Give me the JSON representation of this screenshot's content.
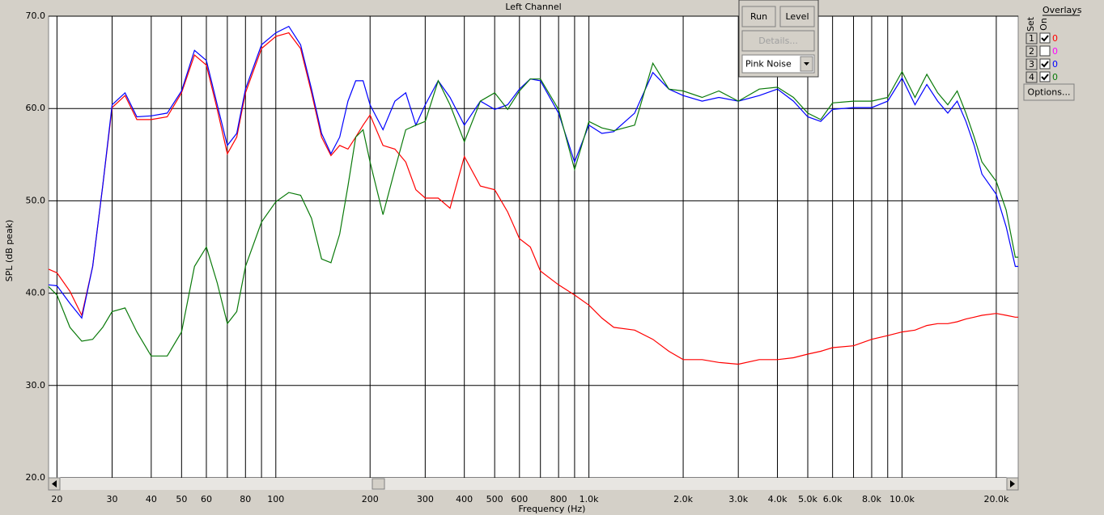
{
  "chart_data": {
    "type": "line",
    "title": "Left Channel",
    "xlabel": "Frequency (Hz)",
    "ylabel": "SPL (dB peak)",
    "log_x": true,
    "grid": true,
    "xlim": [
      18.8,
      23500
    ],
    "ylim": [
      20,
      70
    ],
    "xticks": [
      20,
      30,
      40,
      50,
      60,
      80,
      100,
      200,
      300,
      400,
      500,
      600,
      800,
      {
        "value": 1000,
        "label": "1.0k"
      },
      {
        "value": 2000,
        "label": "2.0k"
      },
      {
        "value": 3000,
        "label": "3.0k"
      },
      {
        "value": 4000,
        "label": "4.0k"
      },
      {
        "value": 5000,
        "label": "5.0k"
      },
      {
        "value": 6000,
        "label": "6.0k"
      },
      {
        "value": 8000,
        "label": "8.0k"
      },
      {
        "value": 10000,
        "label": "10.0k"
      },
      {
        "value": 20000,
        "label": "20.0k"
      }
    ],
    "xminor_ticks": [
      70,
      90,
      700,
      900,
      7000,
      9000
    ],
    "yticks": [
      {
        "value": 20,
        "label": "20.0"
      },
      {
        "value": 30,
        "label": "30.0"
      },
      {
        "value": 40,
        "label": "40.0"
      },
      {
        "value": 50,
        "label": "50.0"
      },
      {
        "value": 60,
        "label": "60.0"
      },
      {
        "value": 70,
        "label": "70.0"
      }
    ],
    "x": [
      18.8,
      20,
      22,
      24,
      26,
      28,
      30,
      33,
      36,
      40,
      45,
      50,
      55,
      60,
      65,
      70,
      75,
      80,
      90,
      100,
      110,
      120,
      130,
      140,
      150,
      160,
      170,
      180,
      190,
      200,
      220,
      240,
      260,
      280,
      300,
      330,
      360,
      400,
      450,
      500,
      550,
      600,
      650,
      700,
      800,
      900,
      1000,
      1100,
      1200,
      1400,
      1600,
      1800,
      2000,
      2300,
      2600,
      3000,
      3500,
      4000,
      4500,
      5000,
      5500,
      6000,
      7000,
      8000,
      9000,
      10000,
      11000,
      12000,
      13000,
      14000,
      15000,
      16000,
      17000,
      18000,
      20000,
      21500,
      23000,
      23500
    ],
    "series": [
      {
        "name": "1",
        "color": "#ff0000",
        "on": true,
        "offset": 0,
        "values": [
          42.6,
          42.2,
          40.2,
          37.6,
          42.9,
          51.6,
          60.1,
          61.4,
          58.8,
          58.8,
          59.1,
          61.7,
          65.8,
          64.7,
          59.9,
          55.1,
          56.9,
          61.7,
          66.5,
          67.8,
          68.2,
          66.5,
          61.7,
          56.9,
          54.9,
          56.0,
          55.6,
          56.9,
          58.2,
          59.3,
          56.0,
          55.6,
          54.2,
          51.2,
          50.3,
          50.3,
          49.2,
          54.8,
          51.6,
          51.2,
          48.8,
          45.9,
          45.0,
          42.4,
          40.9,
          39.8,
          38.7,
          37.3,
          36.3,
          36.0,
          35.0,
          33.7,
          32.8,
          32.8,
          32.5,
          32.3,
          32.8,
          32.8,
          33.0,
          33.4,
          33.7,
          34.1,
          34.3,
          35.0,
          35.4,
          35.8,
          36.0,
          36.5,
          36.7,
          36.7,
          36.9,
          37.2,
          37.4,
          37.6,
          37.8,
          37.6,
          37.4,
          37.4
        ]
      },
      {
        "name": "2",
        "color": "#ff00ff",
        "on": false,
        "offset": 0,
        "values": [
          null,
          null,
          null,
          null,
          null,
          null,
          null,
          null,
          null,
          null,
          null,
          null,
          null,
          null,
          null,
          null,
          null,
          null,
          null,
          null,
          null,
          null,
          null,
          null,
          null,
          null,
          null,
          null,
          null,
          null,
          null,
          null,
          null,
          null,
          null,
          null,
          null,
          null,
          null,
          null,
          null,
          null,
          null,
          null,
          null,
          null,
          null,
          null,
          null,
          null,
          null,
          null,
          null,
          null,
          null,
          null,
          null,
          null,
          null,
          null,
          null,
          null,
          null,
          null,
          null,
          null,
          null,
          null,
          null,
          null,
          null,
          null,
          null,
          null,
          null,
          null,
          null,
          null
        ]
      },
      {
        "name": "3",
        "color": "#0000ff",
        "on": true,
        "offset": 0,
        "values": [
          40.9,
          40.8,
          38.9,
          37.3,
          42.9,
          51.6,
          60.4,
          61.7,
          59.1,
          59.2,
          59.5,
          61.9,
          66.3,
          65.2,
          60.4,
          56.0,
          57.3,
          62.1,
          66.9,
          68.2,
          68.9,
          66.9,
          62.1,
          57.3,
          55.1,
          56.9,
          60.8,
          63.0,
          63.0,
          60.4,
          57.7,
          60.8,
          61.7,
          58.2,
          60.4,
          63.0,
          61.2,
          58.2,
          60.8,
          59.9,
          60.4,
          62.1,
          63.2,
          63.0,
          59.5,
          54.2,
          58.2,
          57.3,
          57.5,
          59.5,
          63.9,
          62.1,
          61.4,
          60.8,
          61.2,
          60.8,
          61.4,
          62.1,
          60.8,
          59.1,
          58.6,
          59.9,
          60.1,
          60.1,
          60.8,
          63.3,
          60.4,
          62.6,
          60.8,
          59.5,
          60.8,
          58.6,
          56.0,
          52.9,
          50.7,
          47.2,
          42.9,
          42.9
        ]
      },
      {
        "name": "4",
        "color": "#0a7a0a",
        "on": true,
        "offset": 0,
        "values": [
          40.7,
          39.8,
          36.3,
          34.8,
          35.0,
          36.3,
          38.0,
          38.4,
          35.8,
          33.2,
          33.2,
          35.8,
          42.9,
          45.0,
          41.1,
          36.7,
          38.0,
          42.9,
          47.7,
          49.9,
          50.9,
          50.6,
          48.1,
          43.7,
          43.3,
          46.4,
          51.6,
          56.9,
          57.7,
          54.2,
          48.5,
          53.4,
          57.7,
          58.2,
          58.6,
          63.0,
          60.4,
          56.4,
          60.8,
          61.7,
          59.9,
          61.9,
          63.2,
          63.2,
          59.9,
          53.4,
          58.6,
          57.9,
          57.6,
          58.2,
          64.9,
          62.1,
          61.9,
          61.2,
          61.9,
          60.8,
          62.1,
          62.3,
          61.2,
          59.5,
          58.8,
          60.6,
          60.8,
          60.8,
          61.2,
          64.0,
          61.2,
          63.7,
          61.7,
          60.4,
          61.9,
          59.5,
          56.9,
          54.2,
          52.1,
          49.0,
          43.9,
          43.9
        ]
      }
    ]
  },
  "controls": {
    "run": "Run",
    "level": "Level",
    "details": "Details...",
    "signal": "Pink Noise",
    "overlays": "Overlays",
    "set_header": "Set",
    "on_header": "On",
    "options": "Options..."
  }
}
